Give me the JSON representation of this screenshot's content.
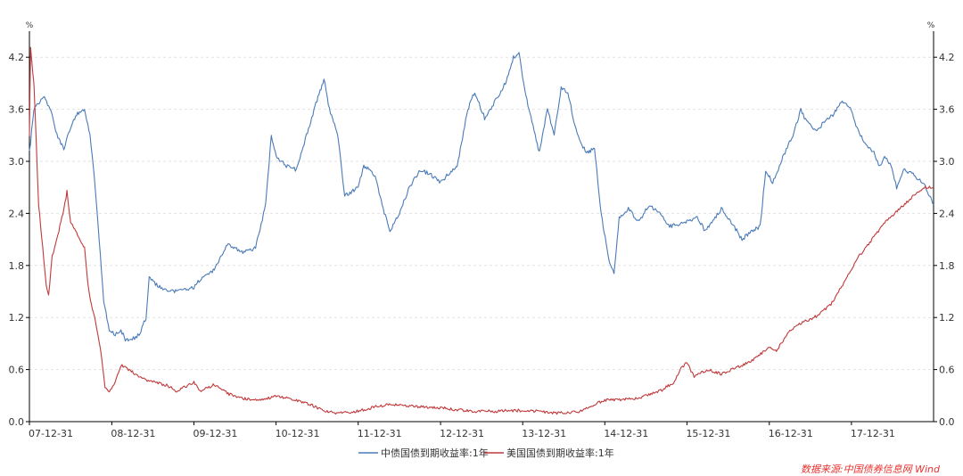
{
  "chart_data": {
    "type": "line",
    "title": "",
    "xlabel": "",
    "ylabel": "",
    "y_unit_left": "%",
    "y_unit_right": "%",
    "ylim": [
      0,
      4.5
    ],
    "y_ticks": [
      "0.0",
      "0.6",
      "1.2",
      "1.8",
      "2.4",
      "3.0",
      "3.6",
      "4.2"
    ],
    "x_ticks": [
      "07-12-31",
      "08-12-31",
      "09-12-31",
      "10-12-31",
      "11-12-31",
      "12-12-31",
      "13-12-31",
      "14-12-31",
      "15-12-31",
      "16-12-31",
      "17-12-31"
    ],
    "xlim": [
      "2007-12-31",
      "2018-12-31"
    ],
    "grid": "horizontal dashed",
    "legend": "bottom-center",
    "series": [
      {
        "name": "中债国债到期收益率:1年",
        "color": "#4a7bb7",
        "points": [
          [
            "2007-12-31",
            3.1
          ],
          [
            "2008-01-20",
            3.6
          ],
          [
            "2008-03-01",
            3.75
          ],
          [
            "2008-04-10",
            3.55
          ],
          [
            "2008-05-01",
            3.3
          ],
          [
            "2008-06-01",
            3.15
          ],
          [
            "2008-07-01",
            3.4
          ],
          [
            "2008-08-01",
            3.55
          ],
          [
            "2008-09-01",
            3.6
          ],
          [
            "2008-09-25",
            3.3
          ],
          [
            "2008-10-15",
            2.8
          ],
          [
            "2008-11-05",
            2.1
          ],
          [
            "2008-11-25",
            1.4
          ],
          [
            "2008-12-20",
            1.05
          ],
          [
            "2009-01-15",
            1.0
          ],
          [
            "2009-02-10",
            1.05
          ],
          [
            "2009-03-01",
            0.95
          ],
          [
            "2009-04-01",
            0.95
          ],
          [
            "2009-05-01",
            1.0
          ],
          [
            "2009-06-01",
            1.2
          ],
          [
            "2009-06-15",
            1.65
          ],
          [
            "2009-08-01",
            1.55
          ],
          [
            "2009-10-01",
            1.5
          ],
          [
            "2009-12-31",
            1.55
          ],
          [
            "2010-02-01",
            1.65
          ],
          [
            "2010-04-01",
            1.75
          ],
          [
            "2010-06-01",
            2.05
          ],
          [
            "2010-08-01",
            1.95
          ],
          [
            "2010-10-01",
            2.0
          ],
          [
            "2010-11-15",
            2.5
          ],
          [
            "2010-12-10",
            3.3
          ],
          [
            "2011-01-01",
            3.05
          ],
          [
            "2011-02-15",
            2.95
          ],
          [
            "2011-04-01",
            2.9
          ],
          [
            "2011-05-15",
            3.3
          ],
          [
            "2011-07-01",
            3.7
          ],
          [
            "2011-08-01",
            3.95
          ],
          [
            "2011-08-25",
            3.6
          ],
          [
            "2011-10-01",
            3.3
          ],
          [
            "2011-11-01",
            2.6
          ],
          [
            "2011-12-31",
            2.7
          ],
          [
            "2012-01-25",
            2.95
          ],
          [
            "2012-02-25",
            2.9
          ],
          [
            "2012-03-20",
            2.8
          ],
          [
            "2012-04-20",
            2.45
          ],
          [
            "2012-05-20",
            2.2
          ],
          [
            "2012-07-01",
            2.4
          ],
          [
            "2012-08-15",
            2.7
          ],
          [
            "2012-10-01",
            2.9
          ],
          [
            "2012-11-15",
            2.85
          ],
          [
            "2012-12-31",
            2.75
          ],
          [
            "2013-02-01",
            2.85
          ],
          [
            "2013-03-15",
            2.95
          ],
          [
            "2013-05-01",
            3.6
          ],
          [
            "2013-06-01",
            3.8
          ],
          [
            "2013-07-15",
            3.5
          ],
          [
            "2013-09-01",
            3.7
          ],
          [
            "2013-10-15",
            3.9
          ],
          [
            "2013-11-20",
            4.2
          ],
          [
            "2013-12-15",
            4.25
          ],
          [
            "2014-01-10",
            3.8
          ],
          [
            "2014-02-15",
            3.4
          ],
          [
            "2014-03-15",
            3.1
          ],
          [
            "2014-04-20",
            3.6
          ],
          [
            "2014-05-20",
            3.3
          ],
          [
            "2014-06-20",
            3.85
          ],
          [
            "2014-07-20",
            3.8
          ],
          [
            "2014-08-20",
            3.4
          ],
          [
            "2014-09-15",
            3.2
          ],
          [
            "2014-10-15",
            3.1
          ],
          [
            "2014-11-15",
            3.15
          ],
          [
            "2014-12-15",
            2.4
          ],
          [
            "2015-01-15",
            1.9
          ],
          [
            "2015-02-10",
            1.7
          ],
          [
            "2015-03-05",
            2.35
          ],
          [
            "2015-04-15",
            2.45
          ],
          [
            "2015-06-01",
            2.3
          ],
          [
            "2015-07-15",
            2.5
          ],
          [
            "2015-09-01",
            2.4
          ],
          [
            "2015-10-15",
            2.25
          ],
          [
            "2015-12-31",
            2.3
          ],
          [
            "2016-02-15",
            2.35
          ],
          [
            "2016-03-20",
            2.2
          ],
          [
            "2016-04-20",
            2.3
          ],
          [
            "2016-06-01",
            2.45
          ],
          [
            "2016-07-15",
            2.3
          ],
          [
            "2016-09-01",
            2.1
          ],
          [
            "2016-10-15",
            2.2
          ],
          [
            "2016-11-20",
            2.25
          ],
          [
            "2016-12-15",
            2.9
          ],
          [
            "2017-01-15",
            2.75
          ],
          [
            "2017-03-01",
            3.05
          ],
          [
            "2017-04-15",
            3.3
          ],
          [
            "2017-05-20",
            3.6
          ],
          [
            "2017-06-15",
            3.45
          ],
          [
            "2017-07-25",
            3.35
          ],
          [
            "2017-09-01",
            3.45
          ],
          [
            "2017-10-15",
            3.55
          ],
          [
            "2017-11-20",
            3.7
          ],
          [
            "2017-12-31",
            3.6
          ],
          [
            "2018-01-20",
            3.4
          ],
          [
            "2018-03-01",
            3.2
          ],
          [
            "2018-04-10",
            3.1
          ],
          [
            "2018-05-01",
            2.95
          ],
          [
            "2018-06-01",
            3.05
          ],
          [
            "2018-06-25",
            2.95
          ],
          [
            "2018-07-20",
            2.7
          ],
          [
            "2018-08-20",
            2.9
          ],
          [
            "2018-10-01",
            2.85
          ],
          [
            "2018-11-15",
            2.75
          ],
          [
            "2018-12-31",
            2.5
          ]
        ]
      },
      {
        "name": "美国国债到期收益率:1年",
        "color": "#c0393b",
        "points": [
          [
            "2007-12-31",
            3.3
          ],
          [
            "2008-01-05",
            4.3
          ],
          [
            "2008-01-20",
            3.9
          ],
          [
            "2008-02-10",
            2.5
          ],
          [
            "2008-02-28",
            2.0
          ],
          [
            "2008-03-15",
            1.55
          ],
          [
            "2008-03-25",
            1.45
          ],
          [
            "2008-04-10",
            1.9
          ],
          [
            "2008-05-01",
            2.1
          ],
          [
            "2008-06-01",
            2.45
          ],
          [
            "2008-06-15",
            2.65
          ],
          [
            "2008-07-01",
            2.3
          ],
          [
            "2008-08-01",
            2.15
          ],
          [
            "2008-09-01",
            2.0
          ],
          [
            "2008-09-15",
            1.6
          ],
          [
            "2008-10-01",
            1.35
          ],
          [
            "2008-10-20",
            1.15
          ],
          [
            "2008-11-10",
            0.85
          ],
          [
            "2008-12-01",
            0.4
          ],
          [
            "2008-12-20",
            0.35
          ],
          [
            "2009-01-15",
            0.45
          ],
          [
            "2009-02-10",
            0.65
          ],
          [
            "2009-03-15",
            0.6
          ],
          [
            "2009-04-15",
            0.55
          ],
          [
            "2009-06-01",
            0.48
          ],
          [
            "2009-07-15",
            0.45
          ],
          [
            "2009-09-01",
            0.42
          ],
          [
            "2009-10-15",
            0.35
          ],
          [
            "2009-12-31",
            0.45
          ],
          [
            "2010-02-01",
            0.35
          ],
          [
            "2010-04-01",
            0.43
          ],
          [
            "2010-06-01",
            0.32
          ],
          [
            "2010-08-01",
            0.27
          ],
          [
            "2010-10-01",
            0.25
          ],
          [
            "2010-12-31",
            0.29
          ],
          [
            "2011-02-01",
            0.28
          ],
          [
            "2011-04-01",
            0.25
          ],
          [
            "2011-06-01",
            0.2
          ],
          [
            "2011-08-01",
            0.12
          ],
          [
            "2011-10-01",
            0.1
          ],
          [
            "2011-12-31",
            0.12
          ],
          [
            "2012-02-15",
            0.15
          ],
          [
            "2012-04-01",
            0.18
          ],
          [
            "2012-06-01",
            0.2
          ],
          [
            "2012-08-01",
            0.18
          ],
          [
            "2012-10-01",
            0.17
          ],
          [
            "2012-12-31",
            0.16
          ],
          [
            "2013-03-01",
            0.14
          ],
          [
            "2013-06-01",
            0.12
          ],
          [
            "2013-09-01",
            0.12
          ],
          [
            "2013-12-31",
            0.13
          ],
          [
            "2014-03-01",
            0.12
          ],
          [
            "2014-06-01",
            0.1
          ],
          [
            "2014-09-01",
            0.11
          ],
          [
            "2014-12-31",
            0.25
          ],
          [
            "2015-03-01",
            0.25
          ],
          [
            "2015-06-01",
            0.27
          ],
          [
            "2015-09-01",
            0.35
          ],
          [
            "2015-11-01",
            0.45
          ],
          [
            "2015-12-01",
            0.6
          ],
          [
            "2015-12-31",
            0.68
          ],
          [
            "2016-02-01",
            0.52
          ],
          [
            "2016-04-01",
            0.6
          ],
          [
            "2016-06-01",
            0.55
          ],
          [
            "2016-08-01",
            0.62
          ],
          [
            "2016-10-01",
            0.68
          ],
          [
            "2016-12-31",
            0.85
          ],
          [
            "2017-02-01",
            0.82
          ],
          [
            "2017-04-01",
            1.05
          ],
          [
            "2017-06-01",
            1.15
          ],
          [
            "2017-08-01",
            1.22
          ],
          [
            "2017-10-01",
            1.35
          ],
          [
            "2017-12-31",
            1.75
          ],
          [
            "2018-02-01",
            1.9
          ],
          [
            "2018-04-01",
            2.1
          ],
          [
            "2018-06-01",
            2.3
          ],
          [
            "2018-08-01",
            2.45
          ],
          [
            "2018-10-01",
            2.6
          ],
          [
            "2018-11-15",
            2.7
          ],
          [
            "2018-12-31",
            2.7
          ]
        ]
      }
    ]
  },
  "source_note": "数据来源:中国债券信息网 Wind"
}
